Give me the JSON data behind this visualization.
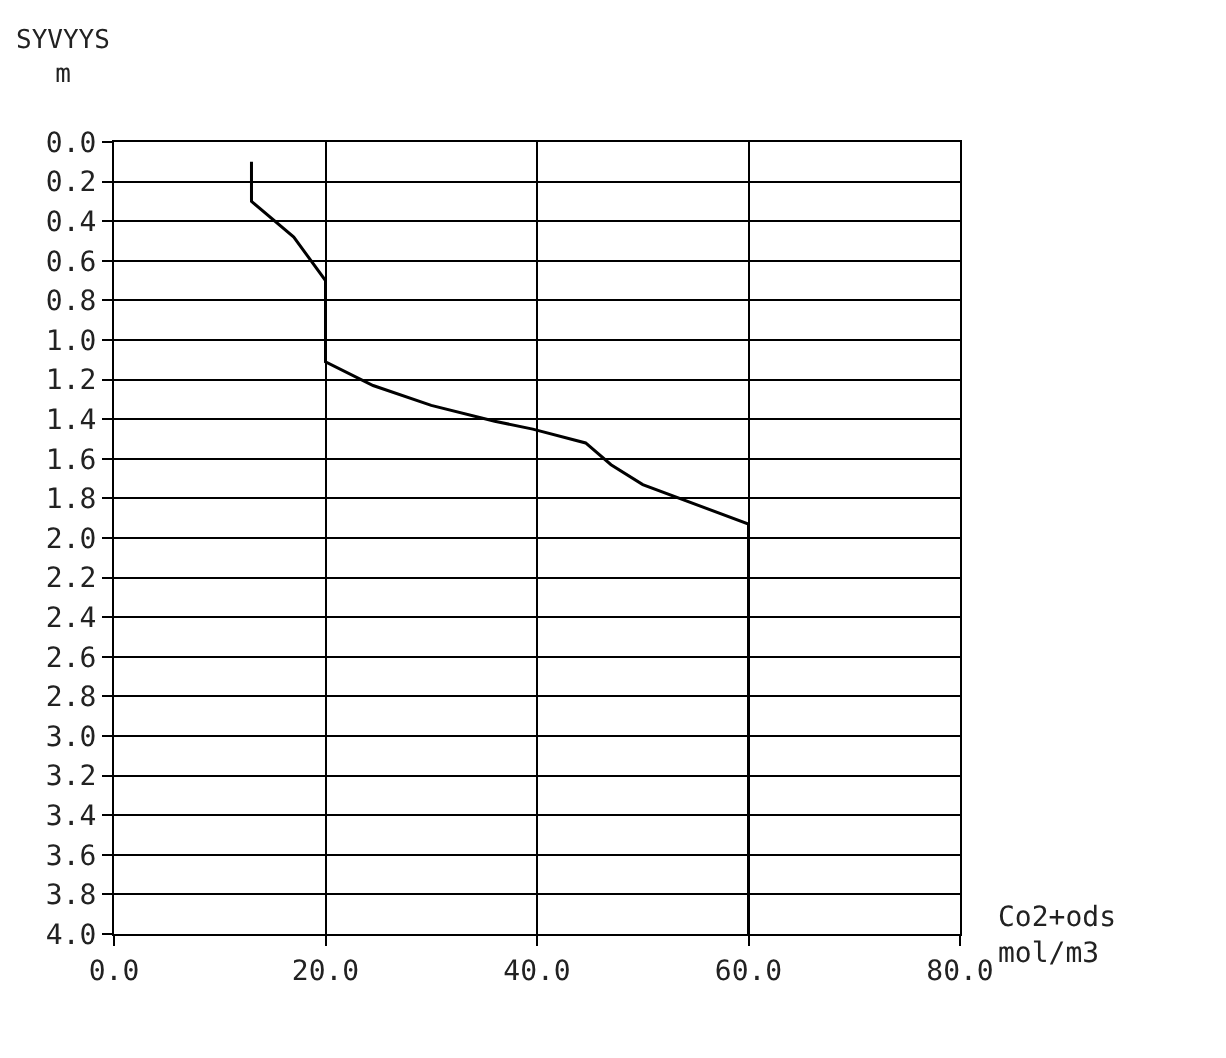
{
  "chart_data": {
    "type": "line",
    "ylabel": "SYVYYS\nm",
    "xlabel": "Co2+ods\nmol/m3",
    "series": [
      {
        "color": "#000000",
        "x": [
          13,
          13,
          17,
          20,
          20,
          24.5,
          30,
          36,
          39.6,
          44.6,
          47,
          50,
          60,
          60
        ],
        "values": [
          0.1,
          0.3,
          0.48,
          0.7,
          1.11,
          1.23,
          1.33,
          1.41,
          1.45,
          1.52,
          1.63,
          1.73,
          1.93,
          4.0
        ]
      }
    ],
    "xlim": [
      0,
      80
    ],
    "ylim": [
      4.0,
      0.0
    ],
    "xticks": [
      {
        "value": 0,
        "label": "0.0"
      },
      {
        "value": 20,
        "label": "20.0"
      },
      {
        "value": 40,
        "label": "40.0"
      },
      {
        "value": 60,
        "label": "60.0"
      },
      {
        "value": 80,
        "label": "80.0"
      }
    ],
    "yticks": [
      {
        "value": 0,
        "label": "0.0"
      },
      {
        "value": 0.2,
        "label": "0.2"
      },
      {
        "value": 0.4,
        "label": "0.4"
      },
      {
        "value": 0.6,
        "label": "0.6"
      },
      {
        "value": 0.8,
        "label": "0.8"
      },
      {
        "value": 1.0,
        "label": "1.0"
      },
      {
        "value": 1.2,
        "label": "1.2"
      },
      {
        "value": 1.4,
        "label": "1.4"
      },
      {
        "value": 1.6,
        "label": "1.6"
      },
      {
        "value": 1.8,
        "label": "1.8"
      },
      {
        "value": 2.0,
        "label": "2.0"
      },
      {
        "value": 2.2,
        "label": "2.2"
      },
      {
        "value": 2.4,
        "label": "2.4"
      },
      {
        "value": 2.6,
        "label": "2.6"
      },
      {
        "value": 2.8,
        "label": "2.8"
      },
      {
        "value": 3.0,
        "label": "3.0"
      },
      {
        "value": 3.2,
        "label": "3.2"
      },
      {
        "value": 3.4,
        "label": "3.4"
      },
      {
        "value": 3.6,
        "label": "3.6"
      },
      {
        "value": 3.8,
        "label": "3.8"
      },
      {
        "value": 4.0,
        "label": "4.0"
      }
    ],
    "grid": true,
    "marker": "none",
    "line_style": "solid"
  }
}
